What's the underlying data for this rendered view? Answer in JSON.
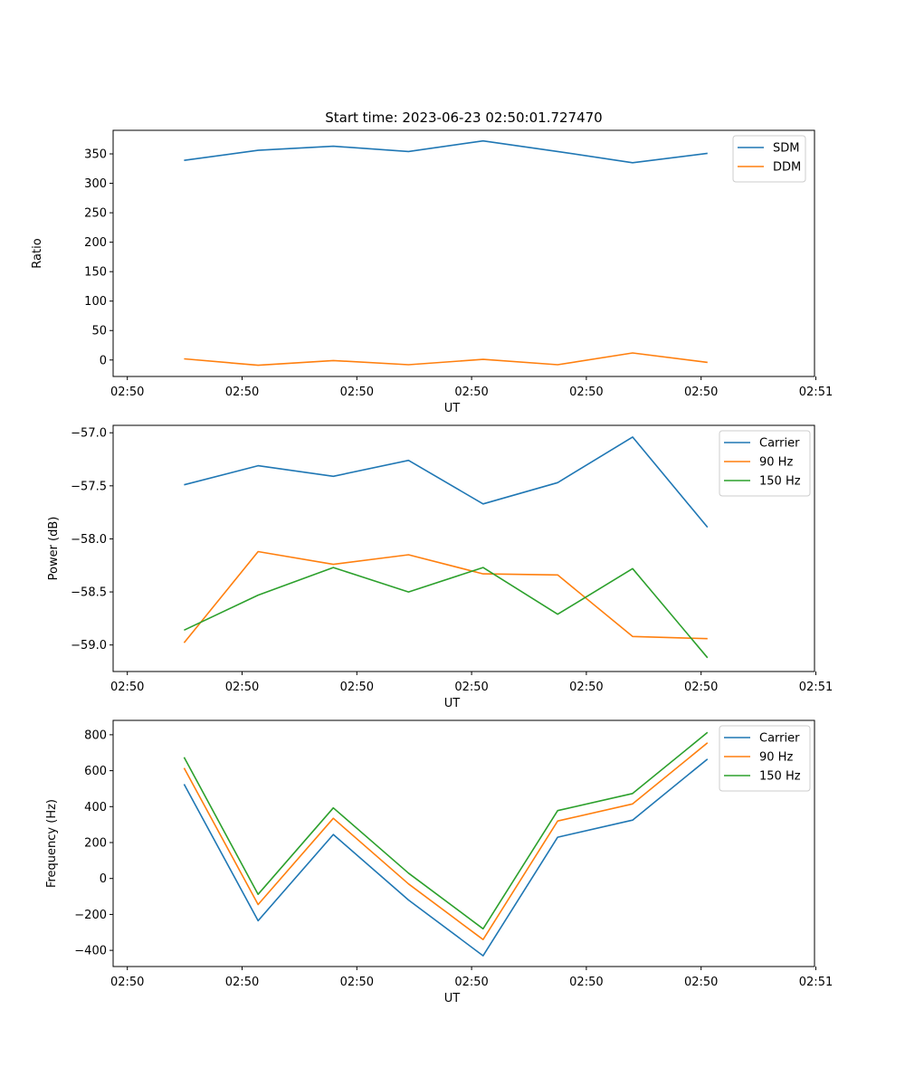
{
  "chart_data": [
    {
      "type": "line",
      "title": "Start time: 2023-06-23 02:50:01.727470",
      "xlabel": "UT",
      "ylabel": "Ratio",
      "x_tick_labels": [
        "02:50",
        "02:50",
        "02:50",
        "02:50",
        "02:50",
        "02:50",
        "02:51"
      ],
      "ylim": [
        -28,
        390
      ],
      "yticks": [
        0,
        50,
        100,
        150,
        200,
        250,
        300,
        350
      ],
      "legend": "top-right",
      "series": [
        {
          "name": "SDM",
          "color": "#1f77b4",
          "values": [
            339,
            356,
            363,
            354,
            372,
            354,
            335,
            351
          ]
        },
        {
          "name": "DDM",
          "color": "#ff7f0e",
          "values": [
            2,
            -9,
            -1,
            -8,
            1,
            -8,
            12,
            -4
          ]
        }
      ]
    },
    {
      "type": "line",
      "title": "",
      "xlabel": "UT",
      "ylabel": "Power (dB)",
      "x_tick_labels": [
        "02:50",
        "02:50",
        "02:50",
        "02:50",
        "02:50",
        "02:50",
        "02:51"
      ],
      "ylim": [
        -59.25,
        -56.93
      ],
      "yticks": [
        -59.0,
        -58.5,
        -58.0,
        -57.5,
        -57.0
      ],
      "legend": "top-right",
      "series": [
        {
          "name": "Carrier",
          "color": "#1f77b4",
          "values": [
            -57.49,
            -57.31,
            -57.41,
            -57.26,
            -57.67,
            -57.47,
            -57.04,
            -57.89
          ]
        },
        {
          "name": "90 Hz",
          "color": "#ff7f0e",
          "values": [
            -58.98,
            -58.12,
            -58.24,
            -58.15,
            -58.33,
            -58.34,
            -58.92,
            -58.94
          ]
        },
        {
          "name": "150 Hz",
          "color": "#2ca02c",
          "values": [
            -58.86,
            -58.53,
            -58.27,
            -58.5,
            -58.27,
            -58.71,
            -58.28,
            -59.12
          ]
        }
      ]
    },
    {
      "type": "line",
      "title": "",
      "xlabel": "UT",
      "ylabel": "Frequency (Hz)",
      "x_tick_labels": [
        "02:50",
        "02:50",
        "02:50",
        "02:50",
        "02:50",
        "02:50",
        "02:51"
      ],
      "ylim": [
        -490,
        880
      ],
      "yticks": [
        -400,
        -200,
        0,
        200,
        400,
        600,
        800
      ],
      "legend": "top-right",
      "series": [
        {
          "name": "Carrier",
          "color": "#1f77b4",
          "values": [
            525,
            -235,
            245,
            -120,
            -430,
            230,
            325,
            665
          ]
        },
        {
          "name": "90 Hz",
          "color": "#ff7f0e",
          "values": [
            615,
            -145,
            335,
            -30,
            -340,
            320,
            415,
            755
          ]
        },
        {
          "name": "150 Hz",
          "color": "#2ca02c",
          "values": [
            675,
            -88,
            393,
            30,
            -280,
            378,
            473,
            813
          ]
        }
      ]
    }
  ]
}
